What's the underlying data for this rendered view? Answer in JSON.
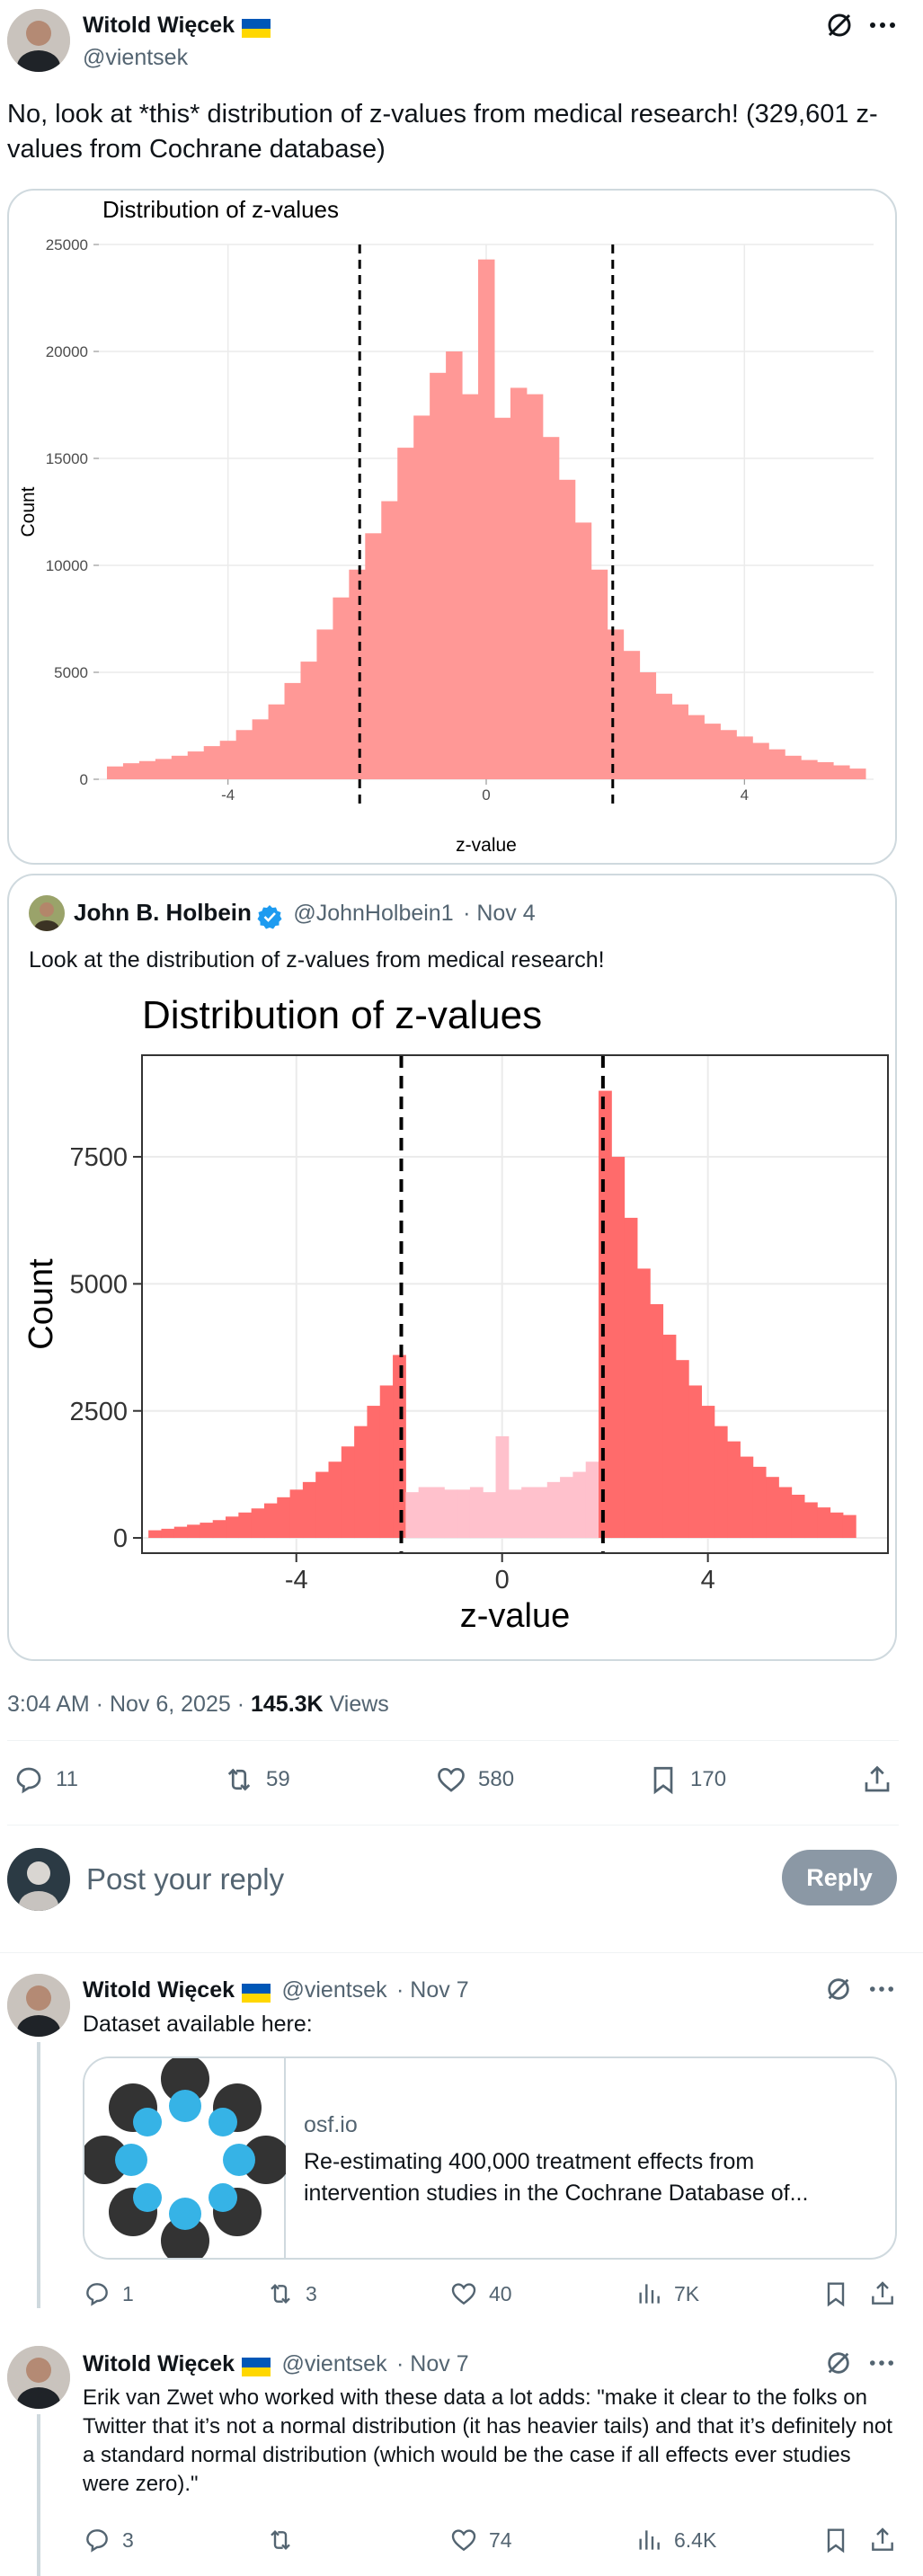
{
  "main_post": {
    "author_name": "Witold Więcek",
    "author_handle": "@vientsek",
    "text": "No, look at *this* distribution of z-values from medical research! (329,601 z-values from Cochrane database)",
    "timestamp": "3:04 AM · Nov 6, 2025 · ",
    "views_count": "145.3K",
    "views_label": "Views",
    "replies": "11",
    "reposts": "59",
    "likes": "580",
    "bookmarks": "170"
  },
  "quote_post": {
    "author_name": "John B. Holbein",
    "author_handle": "@JohnHolbein1",
    "date": "· Nov 4",
    "text": "Look at the distribution of z-values from medical research!"
  },
  "reply_box": {
    "placeholder": "Post your reply",
    "button": "Reply"
  },
  "replies": [
    {
      "author_name": "Witold Więcek",
      "author_handle": "@vientsek",
      "date": "· Nov 7",
      "text": "Dataset available here:",
      "link_domain": "osf.io",
      "link_title": "Re-estimating 400,000 treatment effects from intervention studies in the Cochrane Database of...",
      "replies": "1",
      "reposts": "3",
      "likes": "40",
      "views": "7K"
    },
    {
      "author_name": "Witold Więcek",
      "author_handle": "@vientsek",
      "date": "· Nov 7",
      "text": "Erik van Zwet who worked with these data a lot adds: \"make it clear to the folks on Twitter that it’s not a normal distribution (it has heavier tails) and that it’s definitely not a standard normal distribution (which would be the case if all effects ever studies were zero).\"",
      "replies": "3",
      "reposts": "",
      "likes": "74",
      "views": "6.4K"
    }
  ],
  "icons": [
    "grok-icon",
    "more-icon",
    "reply-icon",
    "repost-icon",
    "like-icon",
    "bookmark-icon",
    "share-icon",
    "views-icon",
    "verified-icon"
  ],
  "colors": {
    "bar_fill": "#ff9896",
    "bar_fill_dark": "#ff6b6b",
    "bar_fill_light": "#ffc1cc",
    "verified": "#1d9bf0",
    "reply_button": "#8b98a5"
  },
  "chart_data": [
    {
      "type": "bar",
      "title": "Distribution of z-values",
      "xlabel": "z-value",
      "ylabel": "Count",
      "xlim": [
        -6,
        6
      ],
      "ylim": [
        0,
        25000
      ],
      "xticks": [
        "-4",
        "0",
        "4"
      ],
      "yticks": [
        "0",
        "5000",
        "10000",
        "15000",
        "20000",
        "25000"
      ],
      "dashed_lines_x": [
        -1.96,
        1.96
      ],
      "grid": true,
      "bin_width": 0.25,
      "x": [
        -5.75,
        -5.5,
        -5.25,
        -5.0,
        -4.75,
        -4.5,
        -4.25,
        -4.0,
        -3.75,
        -3.5,
        -3.25,
        -3.0,
        -2.75,
        -2.5,
        -2.25,
        -2.0,
        -1.75,
        -1.5,
        -1.25,
        -1.0,
        -0.75,
        -0.5,
        -0.25,
        0.0,
        0.25,
        0.5,
        0.75,
        1.0,
        1.25,
        1.5,
        1.75,
        2.0,
        2.25,
        2.5,
        2.75,
        3.0,
        3.25,
        3.5,
        3.75,
        4.0,
        4.25,
        4.5,
        4.75,
        5.0,
        5.25,
        5.5,
        5.75
      ],
      "values": [
        600,
        750,
        850,
        950,
        1100,
        1300,
        1550,
        1800,
        2300,
        2800,
        3500,
        4500,
        5500,
        7000,
        8500,
        9800,
        11500,
        13000,
        15500,
        17000,
        19000,
        20000,
        18000,
        24300,
        16900,
        18300,
        18000,
        16000,
        14000,
        12000,
        9800,
        7000,
        6000,
        5000,
        4000,
        3500,
        3000,
        2600,
        2300,
        2000,
        1700,
        1400,
        1100,
        900,
        800,
        650,
        500
      ]
    },
    {
      "type": "bar",
      "title": "Distribution of z-values",
      "xlabel": "z-value",
      "ylabel": "Count",
      "xlim": [
        -7,
        7.5
      ],
      "ylim": [
        -300,
        9500
      ],
      "xticks": [
        "-4",
        "0",
        "4"
      ],
      "yticks": [
        "0",
        "2500",
        "5000",
        "7500"
      ],
      "dashed_lines_x": [
        -1.96,
        1.96
      ],
      "grid": true,
      "x": [
        -6.75,
        -6.5,
        -6.25,
        -6.0,
        -5.75,
        -5.5,
        -5.25,
        -5.0,
        -4.75,
        -4.5,
        -4.25,
        -4.0,
        -3.75,
        -3.5,
        -3.25,
        -3.0,
        -2.75,
        -2.5,
        -2.25,
        -2.0,
        -1.75,
        -1.5,
        -1.25,
        -1.0,
        -0.75,
        -0.5,
        -0.25,
        0.0,
        0.25,
        0.5,
        0.75,
        1.0,
        1.25,
        1.5,
        1.75,
        2.0,
        2.25,
        2.5,
        2.75,
        3.0,
        3.25,
        3.5,
        3.75,
        4.0,
        4.25,
        4.5,
        4.75,
        5.0,
        5.25,
        5.5,
        5.75,
        6.0,
        6.25,
        6.5,
        6.75
      ],
      "values": [
        150,
        180,
        220,
        260,
        300,
        350,
        420,
        500,
        580,
        680,
        800,
        950,
        1100,
        1300,
        1500,
        1800,
        2200,
        2600,
        3000,
        3600,
        900,
        1000,
        1000,
        950,
        950,
        1000,
        900,
        2000,
        950,
        1000,
        1000,
        1100,
        1200,
        1300,
        1500,
        8800,
        7500,
        6300,
        5300,
        4600,
        4000,
        3500,
        3000,
        2600,
        2200,
        1900,
        1600,
        1400,
        1200,
        1000,
        850,
        700,
        600,
        500,
        450
      ]
    }
  ]
}
